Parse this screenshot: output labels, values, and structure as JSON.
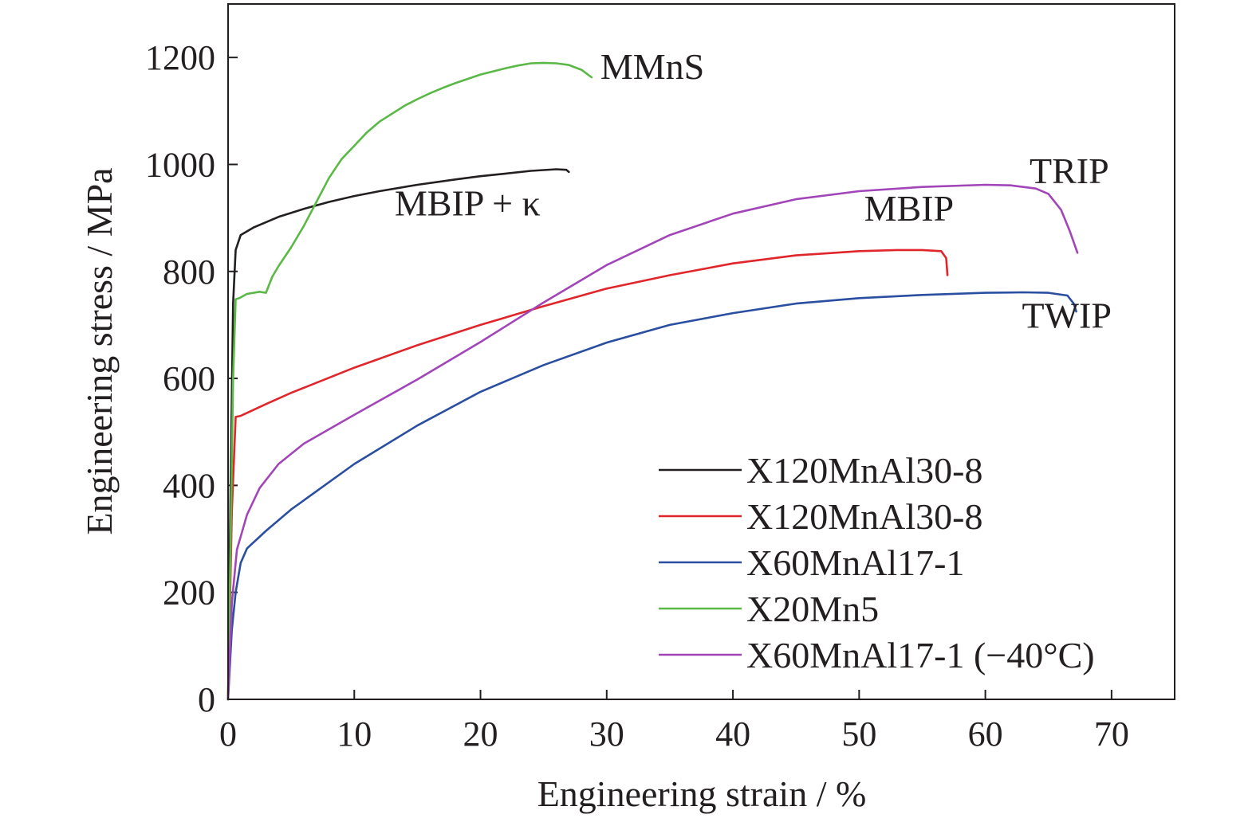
{
  "chart_data": {
    "type": "line",
    "xlabel": "Engineering strain / %",
    "ylabel": "Engineering stress / MPa",
    "xlim": [
      0,
      75
    ],
    "ylim": [
      0,
      1300
    ],
    "xticks": [
      0,
      10,
      20,
      30,
      40,
      50,
      60,
      70
    ],
    "yticks": [
      0,
      200,
      400,
      600,
      800,
      1000,
      1200
    ],
    "grid": false,
    "legend_position": "bottom-right",
    "series": [
      {
        "name": "X120MnAl30-8",
        "color": "#231f20",
        "points": [
          [
            0,
            0
          ],
          [
            0.2,
            400
          ],
          [
            0.4,
            740
          ],
          [
            0.6,
            840
          ],
          [
            1,
            868
          ],
          [
            2,
            882
          ],
          [
            4,
            902
          ],
          [
            6,
            917
          ],
          [
            8,
            930
          ],
          [
            10,
            941
          ],
          [
            12,
            950
          ],
          [
            15,
            962
          ],
          [
            18,
            972
          ],
          [
            20,
            978
          ],
          [
            22,
            983
          ],
          [
            24,
            988
          ],
          [
            26,
            991
          ],
          [
            26.8,
            990
          ],
          [
            27,
            986
          ]
        ],
        "label": "MBIP + κ"
      },
      {
        "name": "X120MnAl30-8",
        "color": "#e0262b",
        "points": [
          [
            0,
            0
          ],
          [
            0.3,
            350
          ],
          [
            0.6,
            528
          ],
          [
            1,
            530
          ],
          [
            3,
            552
          ],
          [
            5,
            573
          ],
          [
            10,
            620
          ],
          [
            15,
            662
          ],
          [
            20,
            700
          ],
          [
            25,
            735
          ],
          [
            30,
            768
          ],
          [
            35,
            793
          ],
          [
            40,
            815
          ],
          [
            45,
            830
          ],
          [
            50,
            838
          ],
          [
            53,
            840
          ],
          [
            55,
            840
          ],
          [
            56.5,
            838
          ],
          [
            56.9,
            825
          ],
          [
            57,
            793
          ]
        ],
        "label": "MBIP"
      },
      {
        "name": "X60MnAl17-1",
        "color": "#2a4ea0",
        "points": [
          [
            0,
            0
          ],
          [
            0.3,
            130
          ],
          [
            0.6,
            200
          ],
          [
            1,
            255
          ],
          [
            1.5,
            282
          ],
          [
            3,
            315
          ],
          [
            5,
            355
          ],
          [
            10,
            440
          ],
          [
            15,
            512
          ],
          [
            20,
            575
          ],
          [
            25,
            625
          ],
          [
            30,
            667
          ],
          [
            35,
            700
          ],
          [
            40,
            722
          ],
          [
            45,
            740
          ],
          [
            50,
            750
          ],
          [
            55,
            756
          ],
          [
            60,
            760
          ],
          [
            63,
            761
          ],
          [
            65,
            760
          ],
          [
            66.5,
            755
          ],
          [
            67,
            740
          ],
          [
            67.2,
            725
          ]
        ],
        "label": "TWIP"
      },
      {
        "name": "X20Mn5",
        "color": "#5ab946",
        "points": [
          [
            0,
            0
          ],
          [
            0.2,
            300
          ],
          [
            0.4,
            600
          ],
          [
            0.6,
            748
          ],
          [
            0.9,
            750
          ],
          [
            1.5,
            758
          ],
          [
            2.5,
            762
          ],
          [
            3,
            760
          ],
          [
            3.5,
            790
          ],
          [
            4,
            810
          ],
          [
            5,
            845
          ],
          [
            6,
            885
          ],
          [
            7,
            930
          ],
          [
            8,
            975
          ],
          [
            9,
            1010
          ],
          [
            10,
            1035
          ],
          [
            11,
            1060
          ],
          [
            12,
            1080
          ],
          [
            13,
            1095
          ],
          [
            14,
            1110
          ],
          [
            15,
            1122
          ],
          [
            16,
            1133
          ],
          [
            17,
            1143
          ],
          [
            18,
            1152
          ],
          [
            19,
            1160
          ],
          [
            20,
            1168
          ],
          [
            21,
            1174
          ],
          [
            22,
            1180
          ],
          [
            23,
            1185
          ],
          [
            24,
            1189
          ],
          [
            25,
            1190
          ],
          [
            26,
            1189
          ],
          [
            27,
            1186
          ],
          [
            28,
            1177
          ],
          [
            28.8,
            1163
          ]
        ],
        "label": "MMnS"
      },
      {
        "name": "X60MnAl17-1 (−40°C)",
        "color": "#a145b8",
        "points": [
          [
            0,
            0
          ],
          [
            0.3,
            180
          ],
          [
            0.7,
            280
          ],
          [
            1.5,
            345
          ],
          [
            2.5,
            395
          ],
          [
            4,
            440
          ],
          [
            6,
            478
          ],
          [
            8,
            505
          ],
          [
            10,
            532
          ],
          [
            15,
            598
          ],
          [
            20,
            668
          ],
          [
            25,
            742
          ],
          [
            30,
            812
          ],
          [
            35,
            868
          ],
          [
            40,
            908
          ],
          [
            45,
            935
          ],
          [
            50,
            950
          ],
          [
            55,
            958
          ],
          [
            60,
            962
          ],
          [
            62,
            961
          ],
          [
            64,
            955
          ],
          [
            65,
            945
          ],
          [
            66,
            915
          ],
          [
            66.7,
            875
          ],
          [
            67.3,
            835
          ]
        ],
        "label": "TRIP"
      }
    ]
  }
}
